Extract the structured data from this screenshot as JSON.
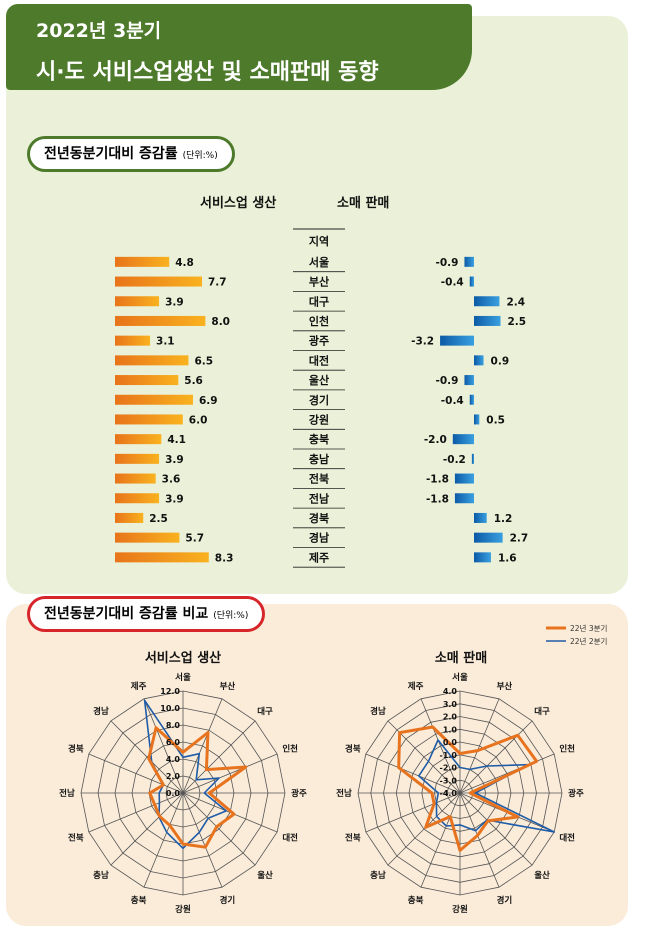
{
  "header": {
    "line1": "2022년 3분기",
    "line2": "시·도 서비스업생산 및 소매판매 동향"
  },
  "section1": {
    "title": "전년동분기대비 증감률",
    "unit": "(단위:%)",
    "service_title": "서비스업 생산",
    "retail_title": "소매 판매",
    "region_header": "지역"
  },
  "section2": {
    "title": "전년동분기대비 증감률 비교",
    "unit": "(단위:%)",
    "legend": [
      "22년 3분기",
      "22년 2분기"
    ]
  },
  "colors": {
    "service_bar": "#f7a11a",
    "service_bar_dark": "#e8741a",
    "retail_bar": "#1f8fd6",
    "retail_bar_dark": "#0c5aa6",
    "q3_line": "#e8731e",
    "q2_line": "#1f5ca8"
  },
  "chart_data": [
    {
      "type": "bar",
      "title": "서비스업 생산",
      "categories": [
        "서울",
        "부산",
        "대구",
        "인천",
        "광주",
        "대전",
        "울산",
        "경기",
        "강원",
        "충북",
        "충남",
        "전북",
        "전남",
        "경북",
        "경남",
        "제주"
      ],
      "values": [
        4.8,
        7.7,
        3.9,
        8.0,
        3.1,
        6.5,
        5.6,
        6.9,
        6.0,
        4.1,
        3.9,
        3.6,
        3.9,
        2.5,
        5.7,
        8.3
      ],
      "value_labels": [
        "4.8",
        "7.7",
        "3.9",
        "8.0",
        "3.1",
        "6.5",
        "5.6",
        "6.9",
        "6.0",
        "4.1",
        "3.9",
        "3.6",
        "3.9",
        "2.5",
        "5.7",
        "8.3"
      ]
    },
    {
      "type": "bar",
      "title": "소매 판매",
      "categories": [
        "서울",
        "부산",
        "대구",
        "인천",
        "광주",
        "대전",
        "울산",
        "경기",
        "강원",
        "충북",
        "충남",
        "전북",
        "전남",
        "경북",
        "경남",
        "제주"
      ],
      "values": [
        -0.9,
        -0.4,
        2.4,
        2.5,
        -3.2,
        0.9,
        -0.9,
        -0.4,
        0.5,
        -2.0,
        -0.2,
        -1.8,
        -1.8,
        1.2,
        2.7,
        1.6
      ],
      "value_labels": [
        "-0.9",
        "-0.4",
        "2.4",
        "2.5",
        "-3.2",
        "0.9",
        "-0.9",
        "-0.4",
        "0.5",
        "-2.0",
        "-0.2",
        "-1.8",
        "-1.8",
        "1.2",
        "2.7",
        "1.6"
      ]
    },
    {
      "type": "radar",
      "title": "서비스업 생산",
      "categories": [
        "서울",
        "부산",
        "대구",
        "인천",
        "광주",
        "대전",
        "울산",
        "경기",
        "강원",
        "충북",
        "충남",
        "전북",
        "전남",
        "경북",
        "경남",
        "제주"
      ],
      "range": [
        0,
        12
      ],
      "ticks": [
        "0.0",
        "2.0",
        "4.0",
        "6.0",
        "8.0",
        "10.0",
        "12.0"
      ],
      "series": [
        {
          "name": "22년 3분기",
          "values": [
            4.8,
            7.7,
            3.9,
            8.0,
            3.1,
            6.5,
            5.6,
            6.9,
            6.0,
            4.1,
            3.9,
            3.6,
            3.9,
            2.5,
            5.7,
            8.3
          ]
        },
        {
          "name": "22년 2분기",
          "values": [
            4.2,
            5.0,
            2.2,
            4.6,
            2.5,
            5.5,
            4.2,
            5.0,
            6.5,
            5.0,
            4.0,
            3.0,
            2.8,
            2.5,
            5.2,
            11.8
          ]
        }
      ]
    },
    {
      "type": "radar",
      "title": "소매 판매",
      "categories": [
        "서울",
        "부산",
        "대구",
        "인천",
        "광주",
        "대전",
        "울산",
        "경기",
        "강원",
        "충북",
        "충남",
        "전북",
        "전남",
        "경북",
        "경남",
        "제주"
      ],
      "range": [
        -4,
        4
      ],
      "ticks": [
        "-4.0",
        "-3.0",
        "-2.0",
        "-1.0",
        "0.0",
        "1.0",
        "2.0",
        "3.0",
        "4.0"
      ],
      "series": [
        {
          "name": "22년 3분기",
          "values": [
            -0.9,
            -0.4,
            2.4,
            2.5,
            -3.2,
            0.9,
            -0.9,
            -0.4,
            0.5,
            -2.0,
            -0.2,
            -1.8,
            -1.8,
            1.2,
            2.7,
            1.6
          ]
        },
        {
          "name": "22년 2분기",
          "values": [
            -2.0,
            -2.0,
            -1.0,
            1.8,
            -2.8,
            4.0,
            -1.0,
            -0.8,
            -1.5,
            -1.2,
            -1.4,
            -2.0,
            -2.3,
            -0.5,
            -0.5,
            0.5
          ]
        }
      ]
    }
  ]
}
